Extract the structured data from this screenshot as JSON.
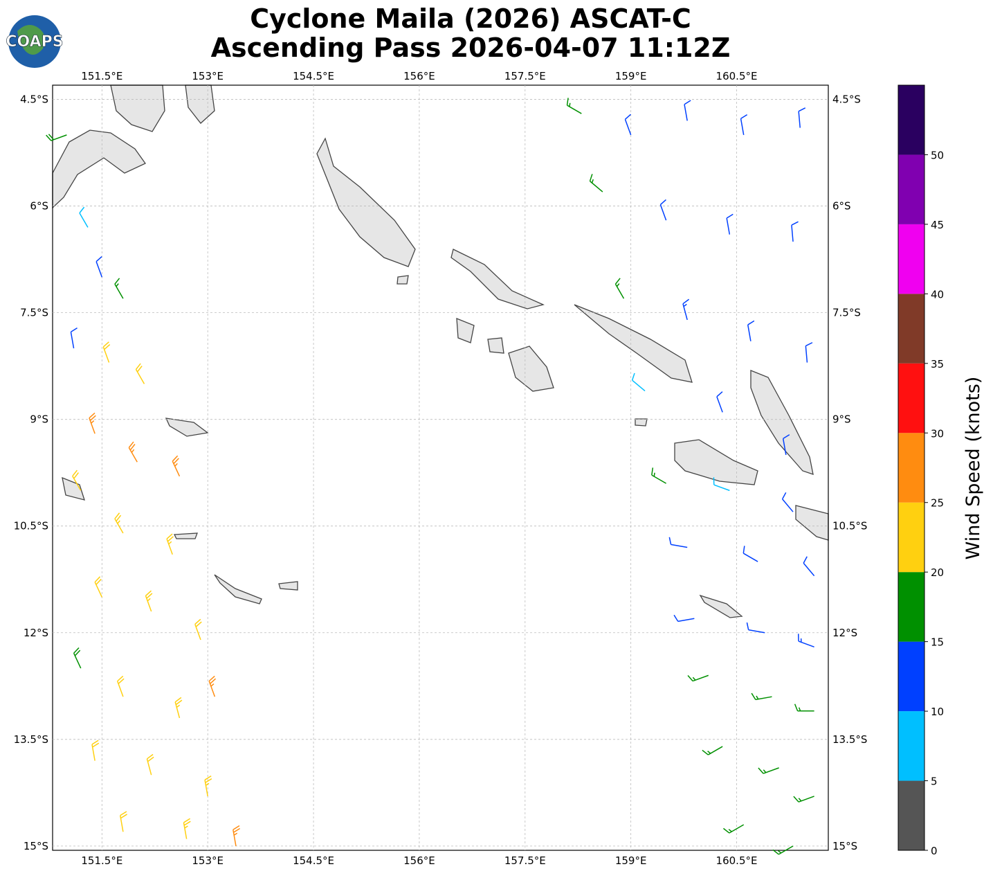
{
  "header": {
    "title": "Cyclone Maila (2026) ASCAT-C",
    "subtitle": "Ascending Pass 2026-04-07 11:12Z",
    "logo": "COAPS"
  },
  "map": {
    "lonlim": [
      150.8,
      161.8
    ],
    "latlim": [
      -4.3,
      -15.06
    ],
    "lonticks": [
      {
        "value": 151.5,
        "label": "151.5°E"
      },
      {
        "value": 153,
        "label": "153°E"
      },
      {
        "value": 154.5,
        "label": "154.5°E"
      },
      {
        "value": 156,
        "label": "156°E"
      },
      {
        "value": 157.5,
        "label": "157.5°E"
      },
      {
        "value": 159,
        "label": "159°E"
      },
      {
        "value": 160.5,
        "label": "160.5°E"
      }
    ],
    "latticks": [
      {
        "value": -4.5,
        "label": "4.5°S"
      },
      {
        "value": -6,
        "label": "6°S"
      },
      {
        "value": -7.5,
        "label": "7.5°S"
      },
      {
        "value": -9,
        "label": "9°S"
      },
      {
        "value": -10.5,
        "label": "10.5°S"
      },
      {
        "value": -12,
        "label": "12°S"
      },
      {
        "value": -13.5,
        "label": "13.5°S"
      },
      {
        "value": -15,
        "label": "15°S"
      }
    ],
    "grid": true,
    "barbs": [
      [
        151.0,
        -5.0,
        18,
        250
      ],
      [
        151.3,
        -6.3,
        8,
        330
      ],
      [
        151.5,
        -7.0,
        12,
        340
      ],
      [
        151.8,
        -7.3,
        17,
        330
      ],
      [
        151.1,
        -8.0,
        12,
        350
      ],
      [
        151.6,
        -8.2,
        21,
        340
      ],
      [
        152.1,
        -8.5,
        22,
        330
      ],
      [
        151.4,
        -9.2,
        26,
        340
      ],
      [
        152.0,
        -9.6,
        27,
        330
      ],
      [
        152.6,
        -9.8,
        26,
        335
      ],
      [
        151.2,
        -10.0,
        22,
        330
      ],
      [
        151.8,
        -10.6,
        23,
        330
      ],
      [
        152.5,
        -10.9,
        24,
        340
      ],
      [
        151.5,
        -11.5,
        22,
        335
      ],
      [
        152.2,
        -11.7,
        23,
        340
      ],
      [
        152.9,
        -12.1,
        22,
        340
      ],
      [
        151.2,
        -12.5,
        18,
        335
      ],
      [
        151.8,
        -12.9,
        22,
        340
      ],
      [
        152.6,
        -13.2,
        23,
        345
      ],
      [
        153.1,
        -12.9,
        27,
        340
      ],
      [
        151.4,
        -13.8,
        22,
        350
      ],
      [
        152.2,
        -14.0,
        22,
        345
      ],
      [
        153.0,
        -14.3,
        23,
        350
      ],
      [
        151.8,
        -14.8,
        22,
        350
      ],
      [
        152.7,
        -14.9,
        23,
        350
      ],
      [
        153.4,
        -15.0,
        26,
        350
      ],
      [
        158.3,
        -4.7,
        17,
        300
      ],
      [
        159.0,
        -5.0,
        12,
        340
      ],
      [
        159.8,
        -4.8,
        12,
        350
      ],
      [
        160.6,
        -5.0,
        12,
        350
      ],
      [
        161.4,
        -4.9,
        12,
        355
      ],
      [
        158.6,
        -5.8,
        17,
        310
      ],
      [
        159.5,
        -6.2,
        12,
        340
      ],
      [
        160.4,
        -6.4,
        12,
        350
      ],
      [
        161.3,
        -6.5,
        12,
        355
      ],
      [
        158.9,
        -7.3,
        17,
        330
      ],
      [
        159.8,
        -7.6,
        13,
        345
      ],
      [
        160.7,
        -7.9,
        12,
        350
      ],
      [
        161.5,
        -8.2,
        12,
        355
      ],
      [
        159.2,
        -8.6,
        8,
        310
      ],
      [
        160.3,
        -8.9,
        12,
        340
      ],
      [
        161.2,
        -9.5,
        12,
        350
      ],
      [
        159.5,
        -9.9,
        16,
        300
      ],
      [
        160.4,
        -10.0,
        8,
        290
      ],
      [
        161.3,
        -10.3,
        12,
        320
      ],
      [
        159.8,
        -10.8,
        12,
        280
      ],
      [
        160.8,
        -11.0,
        12,
        300
      ],
      [
        161.6,
        -11.2,
        12,
        320
      ],
      [
        159.9,
        -11.8,
        12,
        260
      ],
      [
        160.9,
        -12.0,
        12,
        280
      ],
      [
        161.6,
        -12.2,
        13,
        290
      ],
      [
        160.1,
        -12.6,
        17,
        250
      ],
      [
        161.0,
        -12.9,
        16,
        260
      ],
      [
        161.6,
        -13.1,
        16,
        270
      ],
      [
        160.3,
        -13.6,
        17,
        240
      ],
      [
        161.1,
        -13.9,
        17,
        250
      ],
      [
        161.6,
        -14.3,
        16,
        250
      ],
      [
        160.6,
        -14.7,
        17,
        240
      ],
      [
        161.3,
        -15.0,
        17,
        240
      ]
    ]
  },
  "colorbar": {
    "label": "Wind Speed (knots)",
    "lim": [
      0,
      55
    ],
    "ticks": [
      0,
      5,
      10,
      15,
      20,
      25,
      30,
      35,
      40,
      45,
      50
    ],
    "bins": [
      0,
      5,
      10,
      15,
      20,
      25,
      30,
      35,
      40,
      45,
      50,
      55
    ],
    "colors": [
      "#555555",
      "#00bfff",
      "#0040ff",
      "#009000",
      "#ffd010",
      "#ff8c10",
      "#ff1010",
      "#803a28",
      "#f000f0",
      "#8000b0",
      "#2a0060"
    ]
  }
}
